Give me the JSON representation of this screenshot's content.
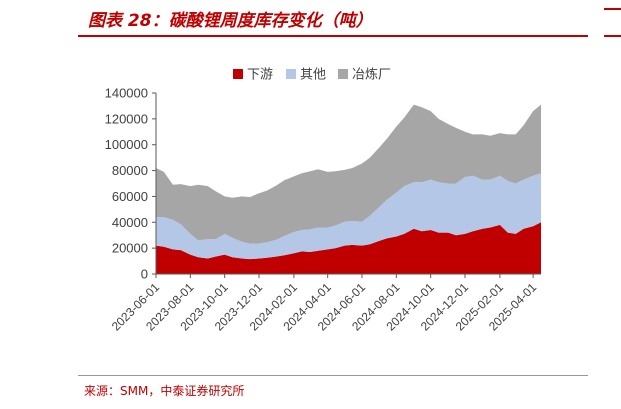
{
  "header": {
    "title": "图表 28：碳酸锂周度库存变化（吨）"
  },
  "footer": {
    "source": "来源：SMM，中泰证券研究所"
  },
  "colors": {
    "brand": "#c00000",
    "downstream": "#c00000",
    "other": "#b4c7e7",
    "smelter": "#a6a6a6",
    "axis": "#595959"
  },
  "chart_data": {
    "type": "area",
    "stacked": true,
    "title": "",
    "xlabel": "",
    "ylabel": "",
    "ylim": [
      0,
      140000
    ],
    "yticks": [
      "0",
      "20000",
      "40000",
      "60000",
      "80000",
      "100000",
      "120000",
      "140000"
    ],
    "xticks": [
      "2023-06-01",
      "2023-08-01",
      "2023-10-01",
      "2023-12-01",
      "2024-02-01",
      "2024-04-01",
      "2024-06-01",
      "2024-08-01",
      "2024-10-01",
      "2024-12-01",
      "2025-02-01",
      "2025-04-01"
    ],
    "legend_position": "top",
    "grid": false,
    "x": [
      "2023-06-01",
      "2023-06-15",
      "2023-07-01",
      "2023-07-15",
      "2023-08-01",
      "2023-08-15",
      "2023-09-01",
      "2023-09-15",
      "2023-10-01",
      "2023-10-15",
      "2023-11-01",
      "2023-11-15",
      "2023-12-01",
      "2023-12-15",
      "2024-01-01",
      "2024-01-15",
      "2024-02-01",
      "2024-02-15",
      "2024-03-01",
      "2024-03-15",
      "2024-04-01",
      "2024-04-15",
      "2024-05-01",
      "2024-05-15",
      "2024-06-01",
      "2024-06-15",
      "2024-07-01",
      "2024-07-15",
      "2024-08-01",
      "2024-08-15",
      "2024-09-01",
      "2024-09-15",
      "2024-10-01",
      "2024-10-15",
      "2024-11-01",
      "2024-11-15",
      "2024-12-01",
      "2024-12-15",
      "2025-01-01",
      "2025-01-15",
      "2025-02-01",
      "2025-02-15",
      "2025-03-01",
      "2025-03-15",
      "2025-04-01",
      "2025-04-15"
    ],
    "series": [
      {
        "name": "下游",
        "color": "#c00000",
        "values": [
          22000,
          21000,
          19000,
          18500,
          15000,
          13000,
          12000,
          13500,
          15000,
          13000,
          12000,
          11500,
          12000,
          12500,
          13500,
          14500,
          16000,
          17500,
          17000,
          18000,
          19000,
          20000,
          22000,
          22500,
          22000,
          23000,
          25500,
          27500,
          29000,
          31000,
          35000,
          33000,
          34000,
          32000,
          32000,
          30000,
          31000,
          33000,
          35000,
          36000,
          38000,
          32000,
          31000,
          35000,
          37000,
          40000
        ]
      },
      {
        "name": "其他",
        "color": "#b4c7e7",
        "values": [
          22000,
          23000,
          23000,
          20000,
          16000,
          13000,
          15000,
          13500,
          16000,
          15000,
          13000,
          12000,
          11500,
          12000,
          13000,
          15000,
          16500,
          16500,
          17500,
          18000,
          17000,
          17500,
          18500,
          18500,
          18500,
          22000,
          26000,
          30000,
          34000,
          37000,
          36000,
          38000,
          39000,
          39000,
          38000,
          40000,
          44000,
          43000,
          38000,
          37000,
          38000,
          40000,
          39000,
          38000,
          39000,
          38000
        ]
      },
      {
        "name": "冶炼厂",
        "color": "#a6a6a6",
        "values": [
          38000,
          35000,
          27000,
          31000,
          37000,
          43000,
          41000,
          37000,
          29000,
          31000,
          35000,
          36000,
          39000,
          40000,
          42000,
          43000,
          43000,
          44000,
          45000,
          45000,
          43000,
          42000,
          40000,
          41000,
          45000,
          45000,
          46000,
          47000,
          51000,
          53000,
          60000,
          58000,
          53000,
          49000,
          46000,
          43000,
          35000,
          32000,
          35000,
          34000,
          33000,
          36000,
          38000,
          42000,
          50000,
          53000
        ]
      }
    ]
  }
}
